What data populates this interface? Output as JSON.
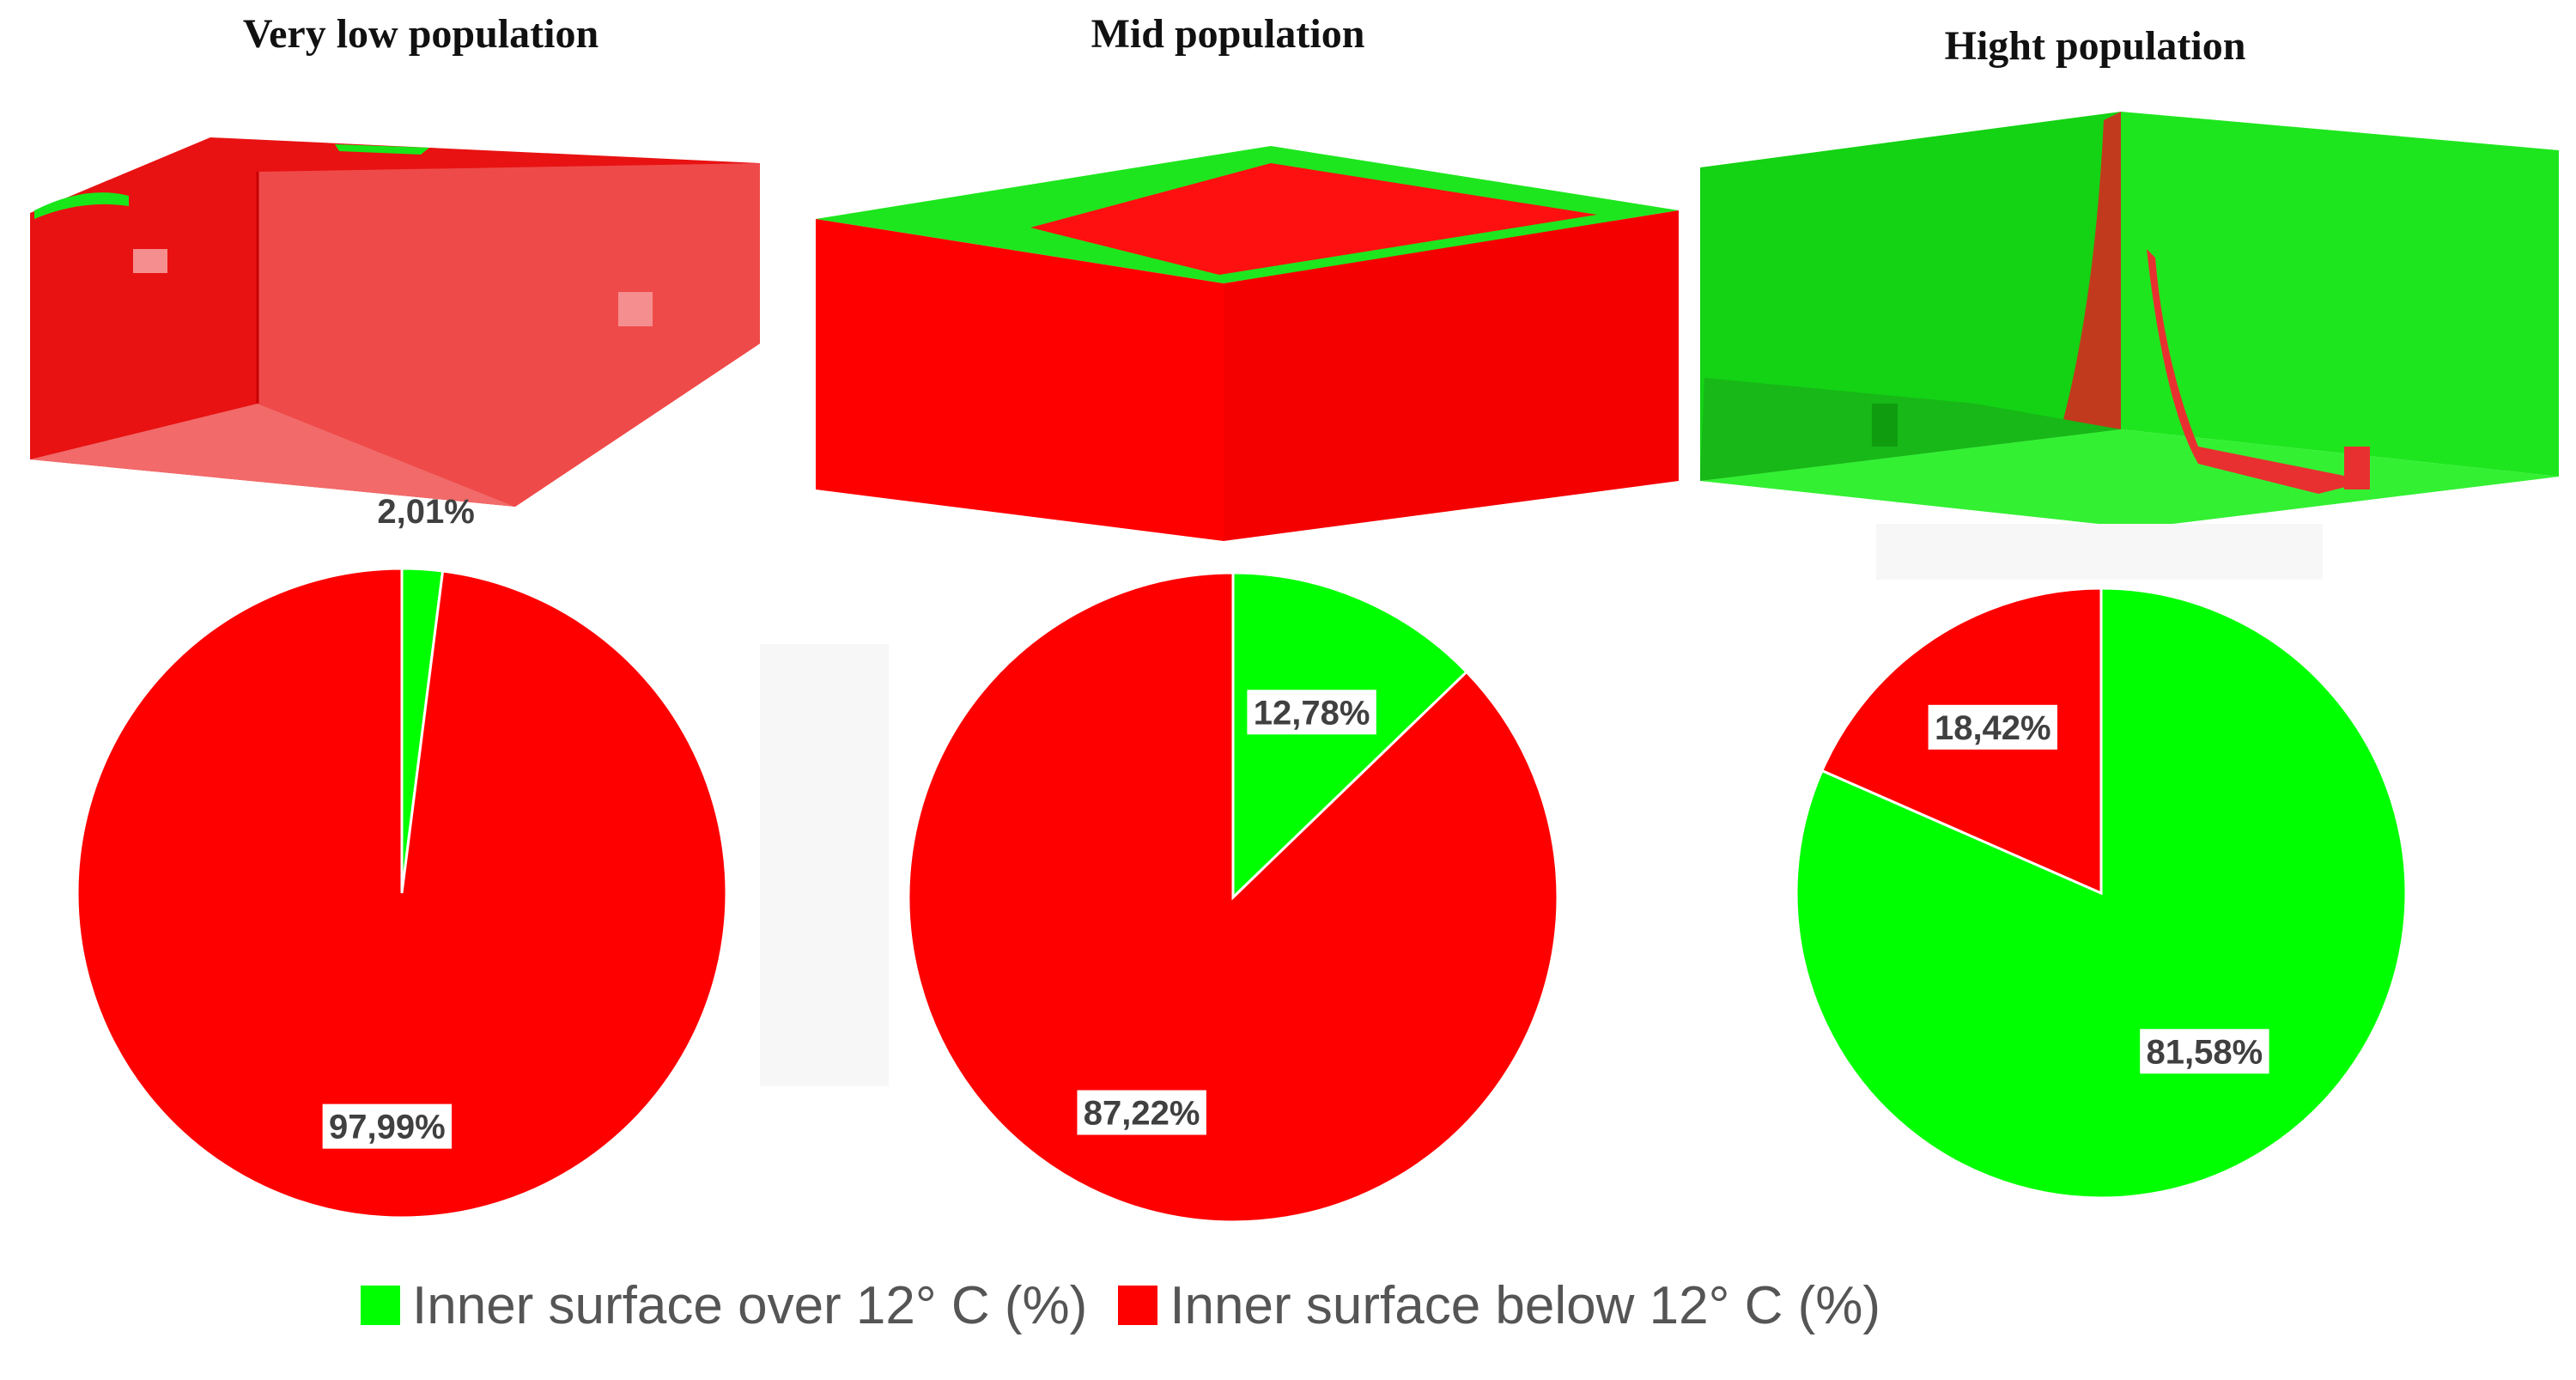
{
  "colors": {
    "over": "#00ff00",
    "below": "#ff0000"
  },
  "legend": {
    "over_label": "Inner surface over 12° C (%)",
    "below_label": "Inner surface below 12° C (%)"
  },
  "chart_data": [
    {
      "type": "pie",
      "title": "Very low population",
      "slices": [
        {
          "label": "Inner surface over 12° C (%)",
          "value": 2.01,
          "display": "2,01%"
        },
        {
          "label": "Inner surface below 12° C (%)",
          "value": 97.99,
          "display": "97,99%"
        }
      ]
    },
    {
      "type": "pie",
      "title": "Mid population",
      "slices": [
        {
          "label": "Inner surface over 12° C (%)",
          "value": 12.78,
          "display": "12,78%"
        },
        {
          "label": "Inner surface below 12° C (%)",
          "value": 87.22,
          "display": "87,22%"
        }
      ]
    },
    {
      "type": "pie",
      "title": "Hight population",
      "slices": [
        {
          "label": "Inner surface over 12° C (%)",
          "value": 81.58,
          "display": "81,58%"
        },
        {
          "label": "Inner surface below 12° C (%)",
          "value": 18.42,
          "display": "18,42%"
        }
      ]
    }
  ]
}
